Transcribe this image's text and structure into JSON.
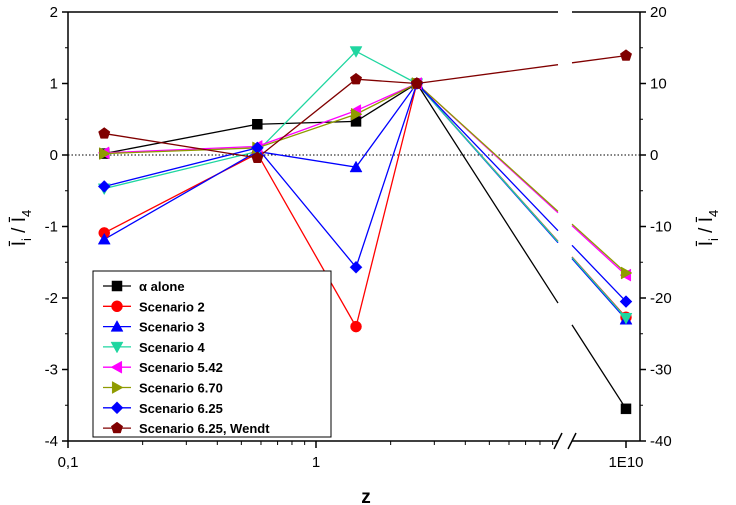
{
  "chart_data": {
    "type": "line",
    "xlabel": "z",
    "ylabel_left": "Ī_i / Ī_4",
    "ylabel_right": "Ī_i / Ī_4",
    "x_scale": "log",
    "x_ticks": [
      {
        "value": 0.1,
        "label": "0,1"
      },
      {
        "value": 1,
        "label": "1"
      },
      {
        "value": 10000000000,
        "label": "1E10"
      }
    ],
    "y_left_range": [
      -4,
      2
    ],
    "y_left_ticks": [
      "2",
      "1",
      "0",
      "-1",
      "-2",
      "-3",
      "-4"
    ],
    "y_right_range": [
      -40,
      20
    ],
    "y_right_ticks": [
      "20",
      "10",
      "0",
      "-10",
      "-20",
      "-30",
      "-40"
    ],
    "axis_break": "between 2.5 and 1E10",
    "reference_line_y": 0,
    "legend_position": "bottom-left",
    "x": [
      0.14,
      0.58,
      1.45,
      2.55,
      10000000000
    ],
    "series": [
      {
        "name": "α alone",
        "color": "#000000",
        "marker": "square",
        "values": [
          0.02,
          0.43,
          0.47,
          1.0,
          -3.55
        ]
      },
      {
        "name": "Scenario 2",
        "color": "#ff0000",
        "marker": "circle",
        "values": [
          -1.09,
          0.02,
          -2.4,
          1.0,
          -2.27
        ]
      },
      {
        "name": "Scenario 3",
        "color": "#0000ff",
        "marker": "triangle-up",
        "values": [
          -1.18,
          0.05,
          -0.17,
          1.0,
          -2.3
        ]
      },
      {
        "name": "Scenario 4",
        "color": "#1fd6a0",
        "marker": "triangle-down",
        "values": [
          -0.47,
          0.05,
          1.45,
          1.0,
          -2.28
        ]
      },
      {
        "name": "Scenario 5.42",
        "color": "#ff00ff",
        "marker": "triangle-left",
        "values": [
          0.03,
          0.12,
          0.62,
          1.0,
          -1.68
        ]
      },
      {
        "name": "Scenario 6.70",
        "color": "#8f9b00",
        "marker": "triangle-right",
        "values": [
          0.02,
          0.1,
          0.57,
          1.0,
          -1.65
        ]
      },
      {
        "name": "Scenario 6.25",
        "color": "#0000ff",
        "marker": "diamond",
        "values": [
          -0.44,
          0.1,
          -1.57,
          1.0,
          -2.05
        ]
      },
      {
        "name": "Scenario 6.25, Wendt",
        "color": "#800000",
        "marker": "pentagon",
        "values": [
          0.3,
          -0.04,
          1.06,
          1.0,
          1.39
        ]
      }
    ]
  }
}
